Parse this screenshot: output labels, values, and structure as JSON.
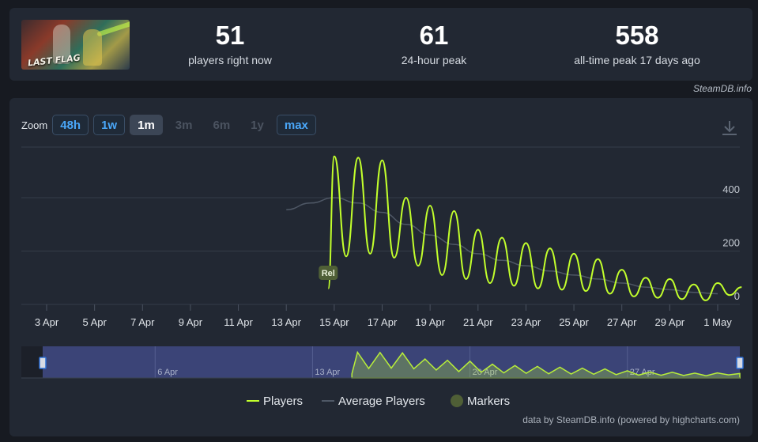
{
  "stats": [
    {
      "value": "51",
      "label": "players right now"
    },
    {
      "value": "61",
      "label": "24-hour peak"
    },
    {
      "value": "558",
      "label": "all-time peak 17 days ago"
    }
  ],
  "game_logo_text": "LAST FLAG",
  "credit": "SteamDB.info",
  "zoom": {
    "label": "Zoom",
    "buttons": [
      {
        "label": "48h",
        "state": "enabled"
      },
      {
        "label": "1w",
        "state": "enabled"
      },
      {
        "label": "1m",
        "state": "selected"
      },
      {
        "label": "3m",
        "state": "disabled"
      },
      {
        "label": "6m",
        "state": "disabled"
      },
      {
        "label": "1y",
        "state": "disabled"
      },
      {
        "label": "max",
        "state": "enabled"
      }
    ]
  },
  "legend": [
    {
      "label": "Players",
      "color": "#c2ff2c"
    },
    {
      "label": "Average Players",
      "color": "#4f5866"
    },
    {
      "label": "Markers",
      "color": "#4f5f36"
    }
  ],
  "footer": "data by SteamDB.info (powered by highcharts.com)",
  "chart_data": {
    "type": "line",
    "x_ticks": [
      "3 Apr",
      "5 Apr",
      "7 Apr",
      "9 Apr",
      "11 Apr",
      "13 Apr",
      "15 Apr",
      "17 Apr",
      "19 Apr",
      "21 Apr",
      "23 Apr",
      "25 Apr",
      "27 Apr",
      "29 Apr",
      "1 May"
    ],
    "y_ticks": [
      0,
      200,
      400
    ],
    "ylim": [
      0,
      580
    ],
    "marker": {
      "label": "Rel",
      "x": "14 Apr"
    },
    "navigator_ticks": [
      "6 Apr",
      "13 Apr",
      "20 Apr",
      "27 Apr"
    ],
    "series": [
      {
        "name": "Players",
        "color": "#c2ff2c",
        "x": [
          "14 Apr 18:00",
          "15 Apr 00:00",
          "15 Apr 12:00",
          "16 Apr 00:00",
          "16 Apr 12:00",
          "17 Apr 00:00",
          "17 Apr 12:00",
          "18 Apr 00:00",
          "18 Apr 12:00",
          "19 Apr 00:00",
          "19 Apr 12:00",
          "20 Apr 00:00",
          "20 Apr 12:00",
          "21 Apr 00:00",
          "21 Apr 12:00",
          "22 Apr 00:00",
          "22 Apr 12:00",
          "23 Apr 00:00",
          "23 Apr 12:00",
          "24 Apr 00:00",
          "24 Apr 12:00",
          "25 Apr 00:00",
          "25 Apr 12:00",
          "26 Apr 00:00",
          "26 Apr 12:00",
          "27 Apr 00:00",
          "27 Apr 12:00",
          "28 Apr 00:00",
          "28 Apr 12:00",
          "29 Apr 00:00",
          "29 Apr 12:00",
          "30 Apr 00:00",
          "30 Apr 12:00",
          "1 May 00:00",
          "1 May 12:00",
          "2 May 00:00"
        ],
        "values": [
          60,
          555,
          180,
          550,
          190,
          540,
          175,
          400,
          145,
          370,
          110,
          350,
          95,
          280,
          80,
          250,
          70,
          230,
          60,
          210,
          55,
          190,
          50,
          170,
          40,
          130,
          30,
          100,
          25,
          95,
          20,
          75,
          15,
          80,
          35,
          65
        ]
      },
      {
        "name": "Average Players",
        "color": "#4f5866",
        "x": [
          "13 Apr 00:00",
          "14 Apr 00:00",
          "15 Apr 00:00",
          "16 Apr 00:00",
          "17 Apr 00:00",
          "18 Apr 00:00",
          "19 Apr 00:00",
          "20 Apr 00:00",
          "21 Apr 00:00",
          "22 Apr 00:00",
          "23 Apr 00:00",
          "24 Apr 00:00",
          "25 Apr 00:00",
          "26 Apr 00:00",
          "27 Apr 00:00",
          "28 Apr 00:00",
          "29 Apr 00:00",
          "30 Apr 00:00",
          "1 May 00:00"
        ],
        "values": [
          355,
          380,
          400,
          380,
          345,
          300,
          260,
          225,
          190,
          165,
          145,
          125,
          110,
          95,
          80,
          65,
          55,
          45,
          40
        ]
      }
    ]
  }
}
